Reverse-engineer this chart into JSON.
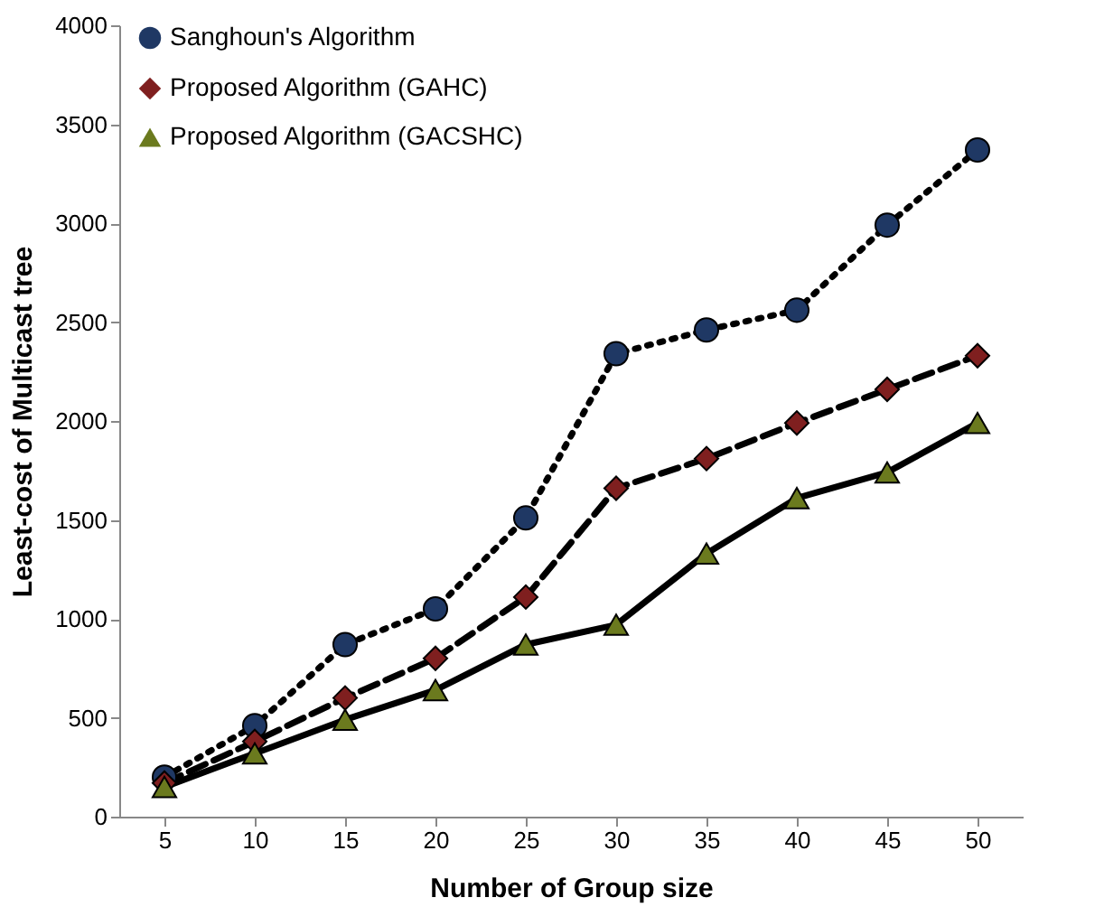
{
  "chart_data": {
    "type": "line",
    "xlabel": "Number of Group size",
    "ylabel": "Least-cost of Multicast tree",
    "categories": [
      "5",
      "10",
      "15",
      "20",
      "25",
      "30",
      "35",
      "40",
      "45",
      "50"
    ],
    "ylim": [
      0,
      4000
    ],
    "yticks": [
      0,
      500,
      1000,
      1500,
      2000,
      2500,
      3000,
      3500,
      4000
    ],
    "grid": false,
    "legend": "top left",
    "series": [
      {
        "name": "Sanghoun's Algorithm",
        "color": "#1f3864",
        "marker": "circle",
        "line_style": "dotted",
        "values": [
          200,
          460,
          870,
          1050,
          1510,
          2340,
          2460,
          2560,
          2990,
          3370
        ]
      },
      {
        "name": "Proposed Algorithm (GAHC)",
        "color": "#7f1f1f",
        "marker": "diamond",
        "line_style": "dashed",
        "values": [
          170,
          380,
          600,
          800,
          1110,
          1660,
          1810,
          1990,
          2160,
          2330
        ]
      },
      {
        "name": "Proposed Algorithm (GACSHC)",
        "color": "#6b7a1e",
        "marker": "triangle",
        "line_style": "solid",
        "values": [
          150,
          320,
          490,
          640,
          870,
          970,
          1330,
          1610,
          1740,
          1990
        ]
      }
    ]
  }
}
